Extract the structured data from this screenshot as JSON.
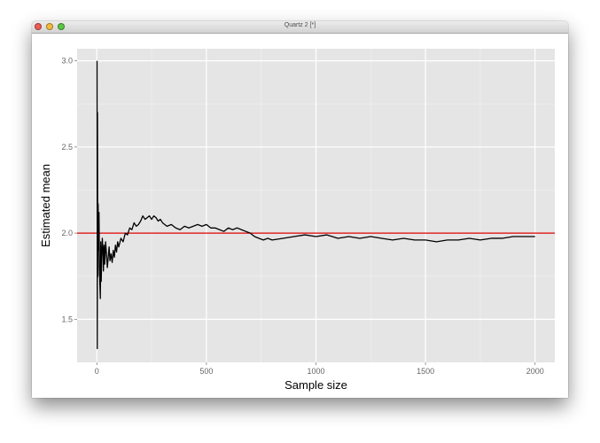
{
  "window": {
    "title": "Quartz 2 [*]"
  },
  "colors": {
    "panel_background": "#e5e5e5",
    "grid": "#ffffff",
    "series_line": "#000000",
    "reference_line": "#dd0000"
  },
  "chart_data": {
    "type": "line",
    "title": "",
    "xlabel": "Sample size",
    "ylabel": "Estimated mean",
    "xlim": [
      -90,
      2090
    ],
    "ylim": [
      1.25,
      3.07
    ],
    "x_ticks": [
      0,
      500,
      1000,
      1500,
      2000
    ],
    "x_tick_labels": [
      "0",
      "500",
      "1000",
      "1500",
      "2000"
    ],
    "y_ticks": [
      1.5,
      2.0,
      2.5,
      3.0
    ],
    "y_tick_labels": [
      "1.5",
      "2.0",
      "2.5",
      "3.0"
    ],
    "grid": true,
    "reference_line": {
      "y": 2.0,
      "color": "#dd0000"
    },
    "series": [
      {
        "x": [
          1,
          2,
          3,
          4,
          5,
          6,
          8,
          10,
          12,
          14,
          16,
          18,
          20,
          22,
          25,
          28,
          30,
          33,
          36,
          40,
          44,
          48,
          52,
          56,
          60,
          65,
          70,
          75,
          80,
          85,
          90,
          95,
          100,
          110,
          120,
          130,
          140,
          150,
          160,
          170,
          180,
          190,
          200,
          210,
          220,
          230,
          240,
          250,
          260,
          270,
          280,
          290,
          300,
          320,
          340,
          360,
          380,
          400,
          420,
          440,
          460,
          480,
          500,
          520,
          540,
          560,
          580,
          600,
          620,
          640,
          660,
          680,
          700,
          720,
          740,
          760,
          780,
          800,
          850,
          900,
          950,
          1000,
          1050,
          1100,
          1150,
          1200,
          1250,
          1300,
          1350,
          1400,
          1450,
          1500,
          1550,
          1600,
          1650,
          1700,
          1750,
          1800,
          1850,
          1900,
          1950,
          2000
        ],
        "y": [
          3.0,
          1.33,
          2.7,
          2.0,
          1.75,
          2.17,
          1.9,
          2.12,
          1.8,
          1.7,
          1.62,
          1.95,
          1.72,
          1.85,
          1.97,
          1.9,
          1.78,
          1.93,
          1.82,
          1.95,
          1.88,
          1.8,
          1.86,
          1.92,
          1.84,
          1.88,
          1.83,
          1.9,
          1.86,
          1.93,
          1.89,
          1.95,
          1.92,
          1.97,
          1.95,
          2.0,
          1.99,
          2.03,
          2.02,
          2.06,
          2.04,
          2.05,
          2.07,
          2.1,
          2.08,
          2.09,
          2.1,
          2.08,
          2.1,
          2.09,
          2.07,
          2.08,
          2.06,
          2.04,
          2.05,
          2.03,
          2.02,
          2.04,
          2.03,
          2.04,
          2.05,
          2.04,
          2.05,
          2.03,
          2.03,
          2.02,
          2.01,
          2.03,
          2.02,
          2.03,
          2.02,
          2.01,
          2.0,
          1.98,
          1.97,
          1.96,
          1.97,
          1.96,
          1.97,
          1.98,
          1.99,
          1.98,
          1.99,
          1.97,
          1.98,
          1.97,
          1.98,
          1.97,
          1.96,
          1.97,
          1.96,
          1.96,
          1.95,
          1.96,
          1.96,
          1.97,
          1.96,
          1.97,
          1.97,
          1.98,
          1.98,
          1.98
        ]
      }
    ]
  }
}
